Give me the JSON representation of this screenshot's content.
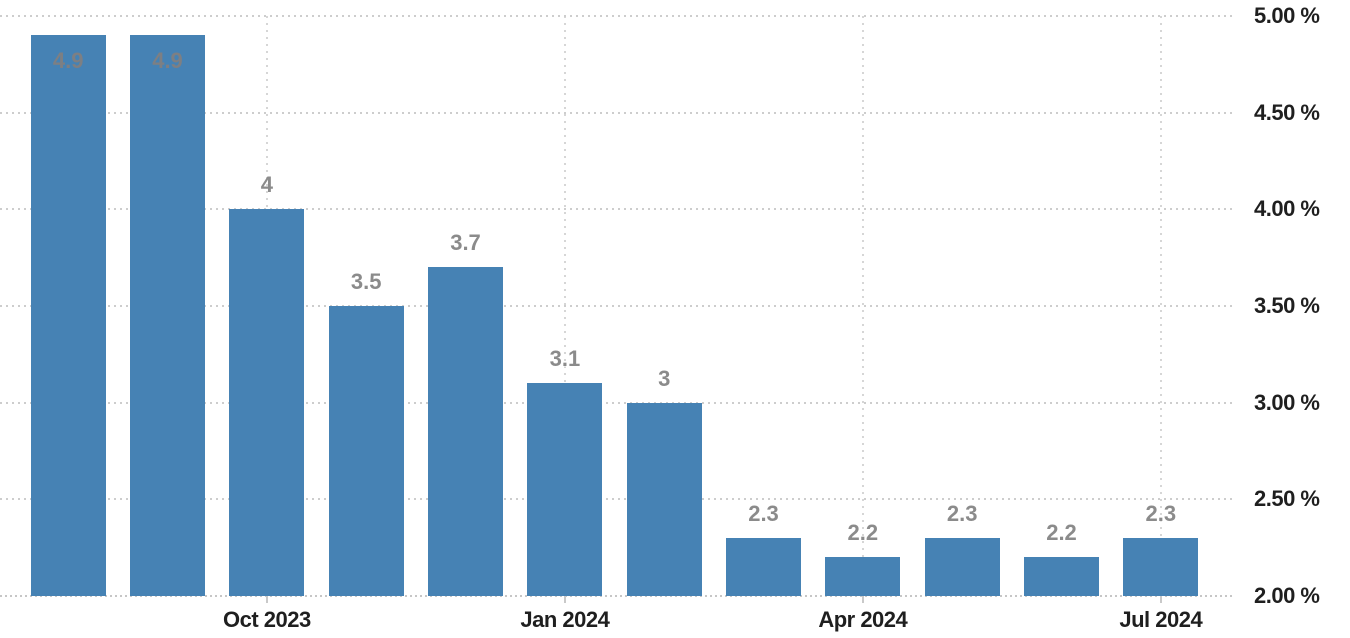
{
  "chart_data": {
    "type": "bar",
    "title": "",
    "xlabel": "",
    "ylabel": "",
    "legend": "none",
    "grid": "dotted",
    "y_axis": {
      "side": "right",
      "min": 2.0,
      "max": 5.0,
      "tick_interval": 0.5,
      "ticks": [
        {
          "label": "5.00 %",
          "value": 5.0
        },
        {
          "label": "4.50 %",
          "value": 4.5
        },
        {
          "label": "4.00 %",
          "value": 4.0
        },
        {
          "label": "3.50 %",
          "value": 3.5
        },
        {
          "label": "3.00 %",
          "value": 3.0
        },
        {
          "label": "2.50 %",
          "value": 2.5
        },
        {
          "label": "2.00 %",
          "value": 2.0
        }
      ]
    },
    "bars": [
      {
        "value": 4.9,
        "label": "4.9",
        "label_position": "inside"
      },
      {
        "value": 4.9,
        "label": "4.9",
        "label_position": "inside"
      },
      {
        "value": 4.0,
        "label": "4",
        "label_position": "above"
      },
      {
        "value": 3.5,
        "label": "3.5",
        "label_position": "above"
      },
      {
        "value": 3.7,
        "label": "3.7",
        "label_position": "above"
      },
      {
        "value": 3.1,
        "label": "3.1",
        "label_position": "above"
      },
      {
        "value": 3.0,
        "label": "3",
        "label_position": "above"
      },
      {
        "value": 2.3,
        "label": "2.3",
        "label_position": "above"
      },
      {
        "value": 2.2,
        "label": "2.2",
        "label_position": "above"
      },
      {
        "value": 2.3,
        "label": "2.3",
        "label_position": "above"
      },
      {
        "value": 2.2,
        "label": "2.2",
        "label_position": "above"
      },
      {
        "value": 2.3,
        "label": "2.3",
        "label_position": "above"
      }
    ],
    "x_ticks": [
      {
        "label": "Oct 2023",
        "bar_index": 2
      },
      {
        "label": "Jan 2024",
        "bar_index": 5
      },
      {
        "label": "Apr 2024",
        "bar_index": 8
      },
      {
        "label": "Jul 2024",
        "bar_index": 11
      }
    ],
    "colors": {
      "bar": "#4682b4",
      "grid": "#cdcdcd",
      "axis_text": "#1f1f1f",
      "data_label": "#8b8b8b",
      "background": "#ffffff"
    }
  }
}
